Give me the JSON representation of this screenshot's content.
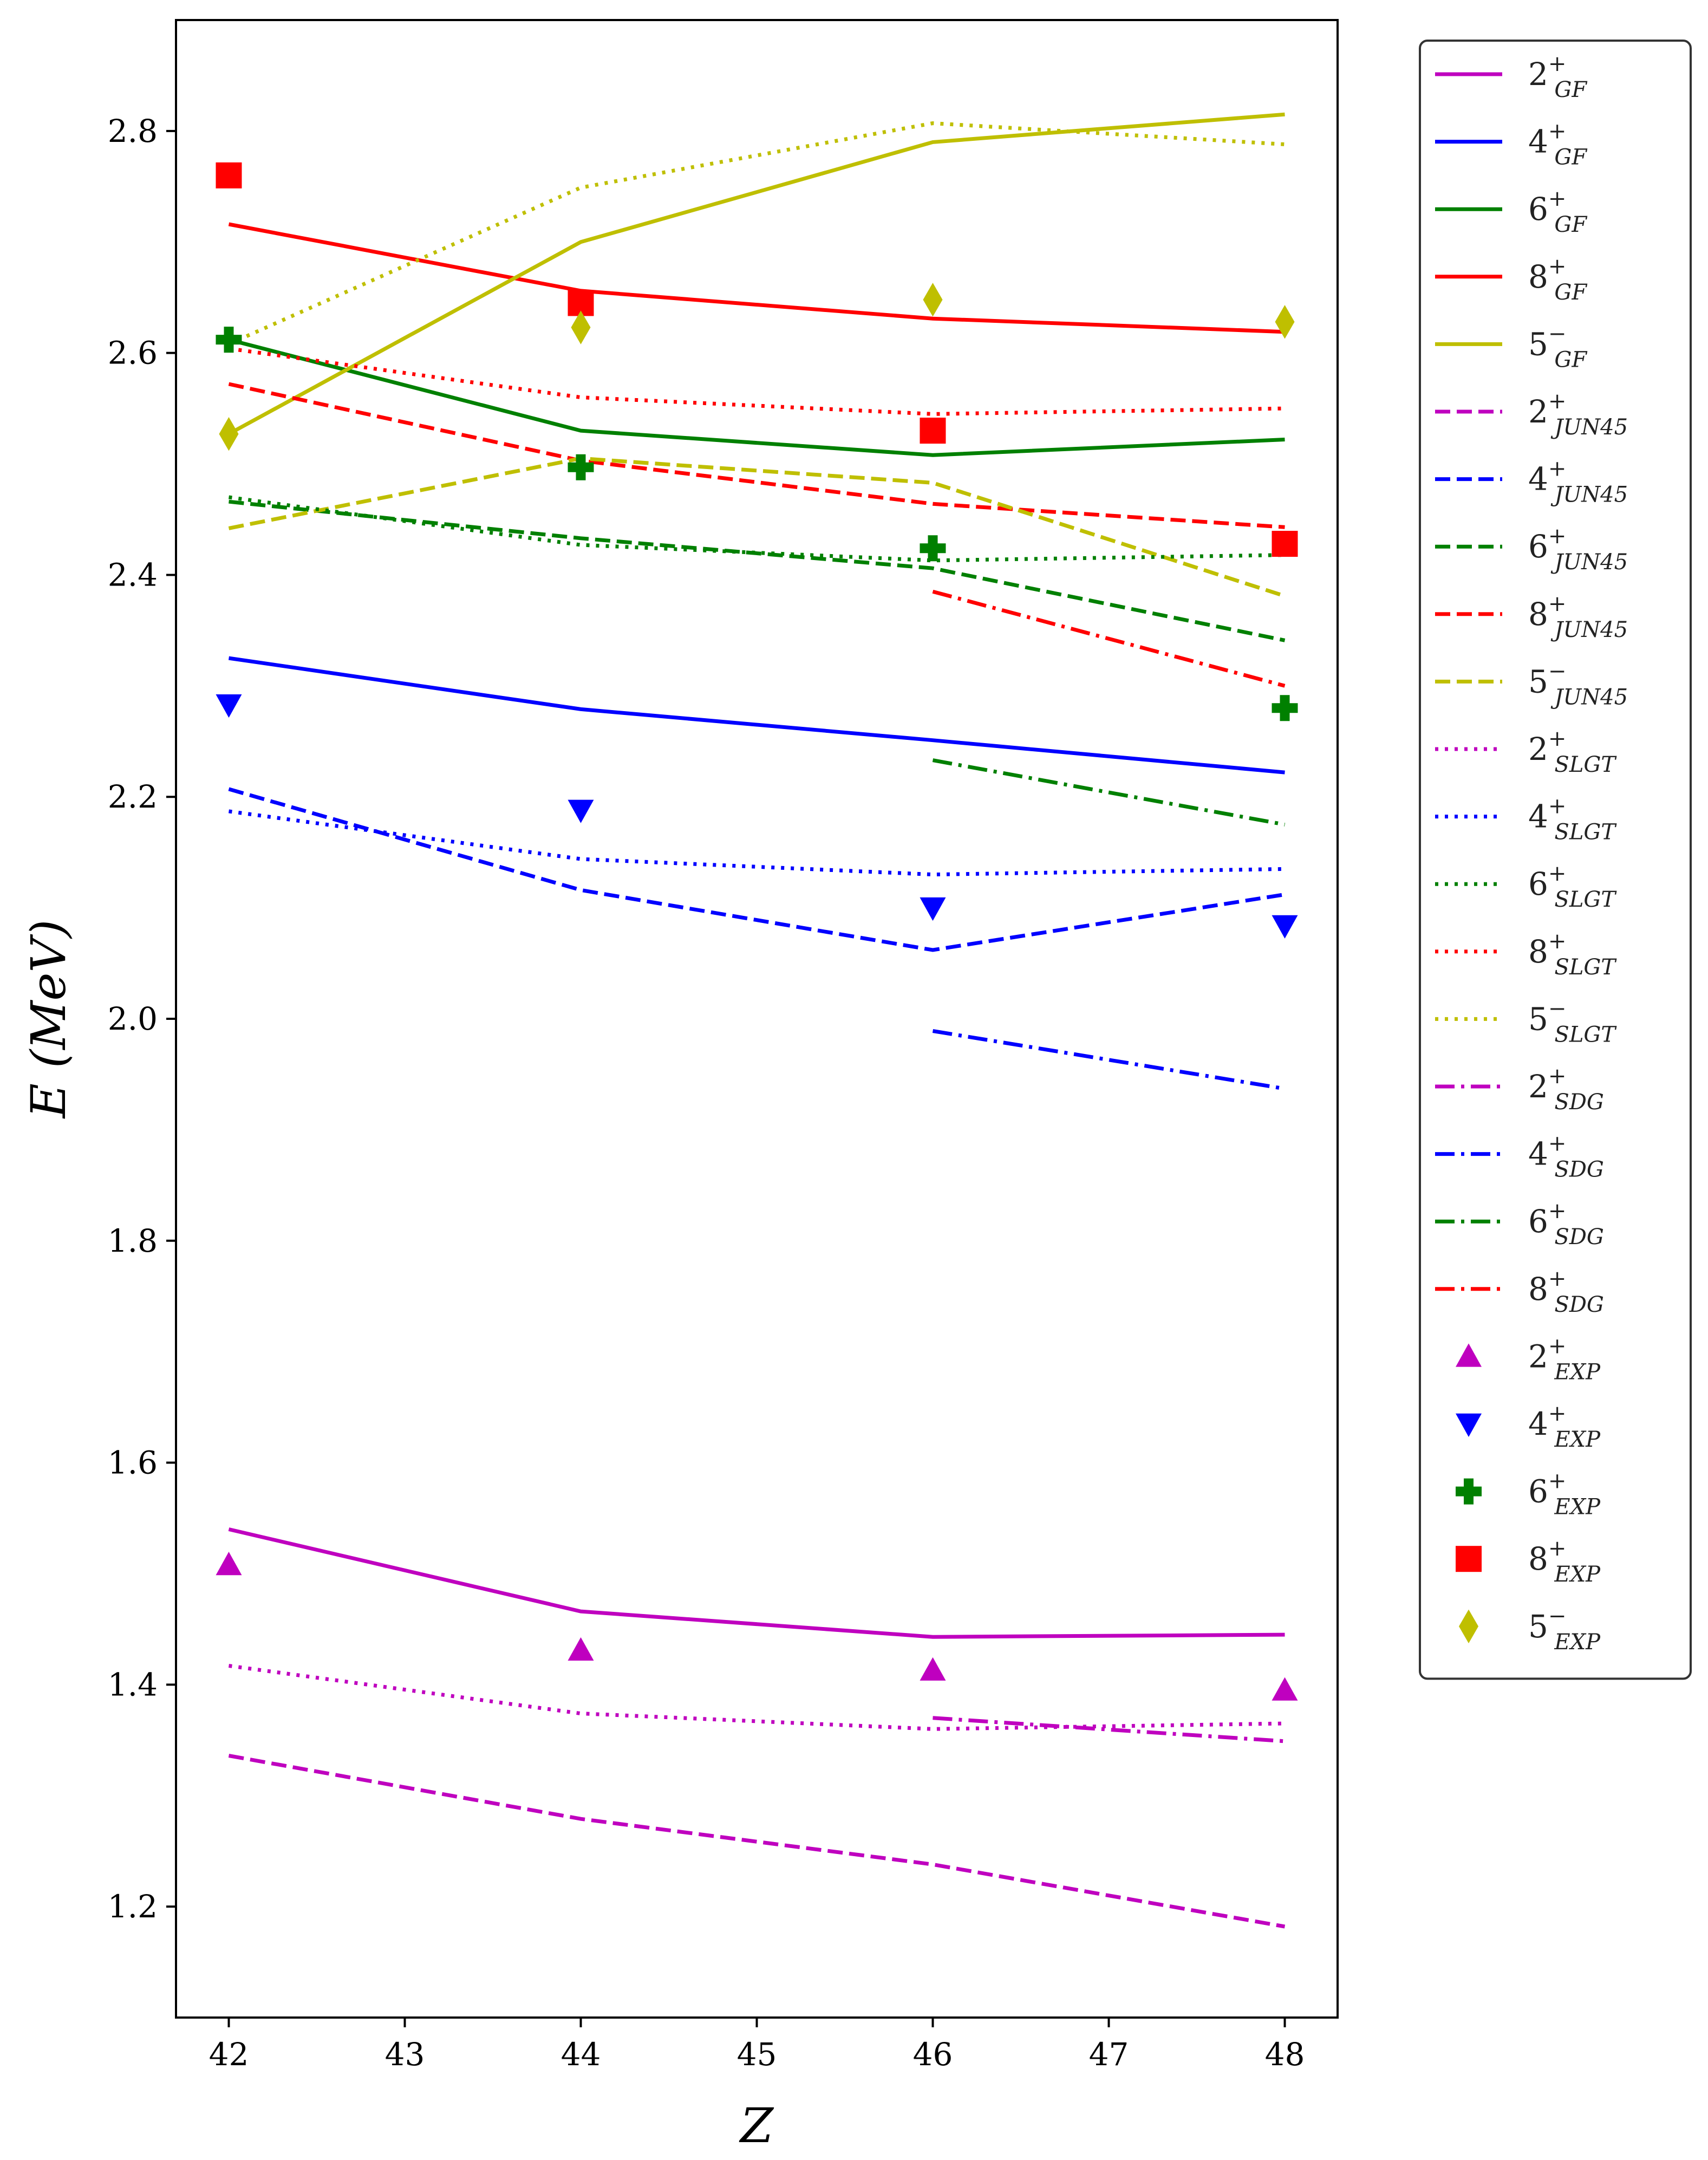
{
  "chart_data": {
    "type": "line",
    "title": "",
    "xlabel": "Z",
    "ylabel": "E (MeV)",
    "xlim": [
      41.7,
      48.3
    ],
    "ylim": [
      1.1,
      2.9
    ],
    "xticks": [
      "42",
      "43",
      "44",
      "45",
      "46",
      "47",
      "48"
    ],
    "yticks": [
      "1.2",
      "1.4",
      "1.6",
      "1.8",
      "2.0",
      "2.2",
      "2.4",
      "2.6",
      "2.8"
    ],
    "legend_position": "outside-right",
    "series": [
      {
        "name": "2+GF",
        "base": "2",
        "sup": "+",
        "sub": "GF",
        "color": "#bf00bf",
        "style": "solid",
        "x": [
          42,
          44,
          46,
          48
        ],
        "y": [
          1.54,
          1.466,
          1.443,
          1.445
        ]
      },
      {
        "name": "4+GF",
        "base": "4",
        "sup": "+",
        "sub": "GF",
        "color": "#0000ff",
        "style": "solid",
        "x": [
          42,
          44,
          46,
          48
        ],
        "y": [
          2.325,
          2.279,
          2.251,
          2.222
        ]
      },
      {
        "name": "6+GF",
        "base": "6",
        "sup": "+",
        "sub": "GF",
        "color": "#008000",
        "style": "solid",
        "x": [
          42,
          44,
          46,
          48
        ],
        "y": [
          2.612,
          2.53,
          2.508,
          2.522
        ]
      },
      {
        "name": "8+GF",
        "base": "8",
        "sup": "+",
        "sub": "GF",
        "color": "#ff0000",
        "style": "solid",
        "x": [
          42,
          44,
          46,
          48
        ],
        "y": [
          2.716,
          2.656,
          2.631,
          2.619
        ]
      },
      {
        "name": "5-GF",
        "base": "5",
        "sup": "−",
        "sub": "GF",
        "color": "#bfbf00",
        "style": "solid",
        "x": [
          42,
          44,
          46,
          48
        ],
        "y": [
          2.527,
          2.7,
          2.79,
          2.815
        ]
      },
      {
        "name": "2+JUN45",
        "base": "2",
        "sup": "+",
        "sub": "JUN45",
        "color": "#bf00bf",
        "style": "dashed",
        "x": [
          42,
          44,
          46,
          48
        ],
        "y": [
          1.336,
          1.279,
          1.238,
          1.182
        ]
      },
      {
        "name": "4+JUN45",
        "base": "4",
        "sup": "+",
        "sub": "JUN45",
        "color": "#0000ff",
        "style": "dashed",
        "x": [
          42,
          44,
          46,
          48
        ],
        "y": [
          2.207,
          2.116,
          2.062,
          2.112
        ]
      },
      {
        "name": "6+JUN45",
        "base": "6",
        "sup": "+",
        "sub": "JUN45",
        "color": "#008000",
        "style": "dashed",
        "x": [
          42,
          44,
          46,
          48
        ],
        "y": [
          2.466,
          2.433,
          2.406,
          2.341
        ]
      },
      {
        "name": "8+JUN45",
        "base": "8",
        "sup": "+",
        "sub": "JUN45",
        "color": "#ff0000",
        "style": "dashed",
        "x": [
          42,
          44,
          46,
          48
        ],
        "y": [
          2.572,
          2.503,
          2.464,
          2.443
        ]
      },
      {
        "name": "5-JUN45",
        "base": "5",
        "sup": "−",
        "sub": "JUN45",
        "color": "#bfbf00",
        "style": "dashed",
        "x": [
          42,
          44,
          46,
          48
        ],
        "y": [
          2.442,
          2.505,
          2.483,
          2.381
        ]
      },
      {
        "name": "2+SLGT",
        "base": "2",
        "sup": "+",
        "sub": "SLGT",
        "color": "#bf00bf",
        "style": "dotted",
        "x": [
          42,
          44,
          46,
          48
        ],
        "y": [
          1.417,
          1.374,
          1.36,
          1.365
        ]
      },
      {
        "name": "4+SLGT",
        "base": "4",
        "sup": "+",
        "sub": "SLGT",
        "color": "#0000ff",
        "style": "dotted",
        "x": [
          42,
          44,
          46,
          48
        ],
        "y": [
          2.187,
          2.144,
          2.13,
          2.135
        ]
      },
      {
        "name": "6+SLGT",
        "base": "6",
        "sup": "+",
        "sub": "SLGT",
        "color": "#008000",
        "style": "dotted",
        "x": [
          42,
          44,
          46,
          48
        ],
        "y": [
          2.47,
          2.427,
          2.413,
          2.418
        ]
      },
      {
        "name": "8+SLGT",
        "base": "8",
        "sup": "+",
        "sub": "SLGT",
        "color": "#ff0000",
        "style": "dotted",
        "x": [
          42,
          44,
          46,
          48
        ],
        "y": [
          2.604,
          2.56,
          2.545,
          2.55
        ]
      },
      {
        "name": "5-SLGT",
        "base": "5",
        "sup": "−",
        "sub": "SLGT",
        "color": "#bfbf00",
        "style": "dotted",
        "x": [
          42,
          44,
          46,
          48
        ],
        "y": [
          2.608,
          2.749,
          2.807,
          2.788
        ]
      },
      {
        "name": "2+SDG",
        "base": "2",
        "sup": "+",
        "sub": "SDG",
        "color": "#bf00bf",
        "style": "dashdot",
        "x": [
          46,
          48
        ],
        "y": [
          1.37,
          1.349
        ]
      },
      {
        "name": "4+SDG",
        "base": "4",
        "sup": "+",
        "sub": "SDG",
        "color": "#0000ff",
        "style": "dashdot",
        "x": [
          46,
          48
        ],
        "y": [
          1.989,
          1.937
        ]
      },
      {
        "name": "6+SDG",
        "base": "6",
        "sup": "+",
        "sub": "SDG",
        "color": "#008000",
        "style": "dashdot",
        "x": [
          46,
          48
        ],
        "y": [
          2.233,
          2.175
        ]
      },
      {
        "name": "8+SDG",
        "base": "8",
        "sup": "+",
        "sub": "SDG",
        "color": "#ff0000",
        "style": "dashdot",
        "x": [
          46,
          48
        ],
        "y": [
          2.385,
          2.3
        ]
      }
    ],
    "markers": [
      {
        "name": "2+EXP",
        "base": "2",
        "sup": "+",
        "sub": "EXP",
        "color": "#bf00bf",
        "marker": "triangle-up",
        "x": [
          42,
          44,
          46,
          48
        ],
        "y": [
          1.508,
          1.431,
          1.413,
          1.395
        ]
      },
      {
        "name": "4+EXP",
        "base": "4",
        "sup": "+",
        "sub": "EXP",
        "color": "#0000ff",
        "marker": "triangle-down",
        "x": [
          42,
          44,
          46,
          48
        ],
        "y": [
          2.283,
          2.188,
          2.1,
          2.084
        ]
      },
      {
        "name": "6+EXP",
        "base": "6",
        "sup": "+",
        "sub": "EXP",
        "color": "#008000",
        "marker": "plus",
        "x": [
          42,
          44,
          46,
          48
        ],
        "y": [
          2.612,
          2.497,
          2.424,
          2.28
        ]
      },
      {
        "name": "8+EXP",
        "base": "8",
        "sup": "+",
        "sub": "EXP",
        "color": "#ff0000",
        "marker": "square",
        "x": [
          42,
          44,
          46,
          48
        ],
        "y": [
          2.76,
          2.645,
          2.53,
          2.428
        ]
      },
      {
        "name": "5-EXP",
        "base": "5",
        "sup": "−",
        "sub": "EXP",
        "color": "#bfbf00",
        "marker": "diamond",
        "x": [
          42,
          44,
          46,
          48
        ],
        "y": [
          2.527,
          2.623,
          2.648,
          2.628
        ]
      }
    ]
  }
}
